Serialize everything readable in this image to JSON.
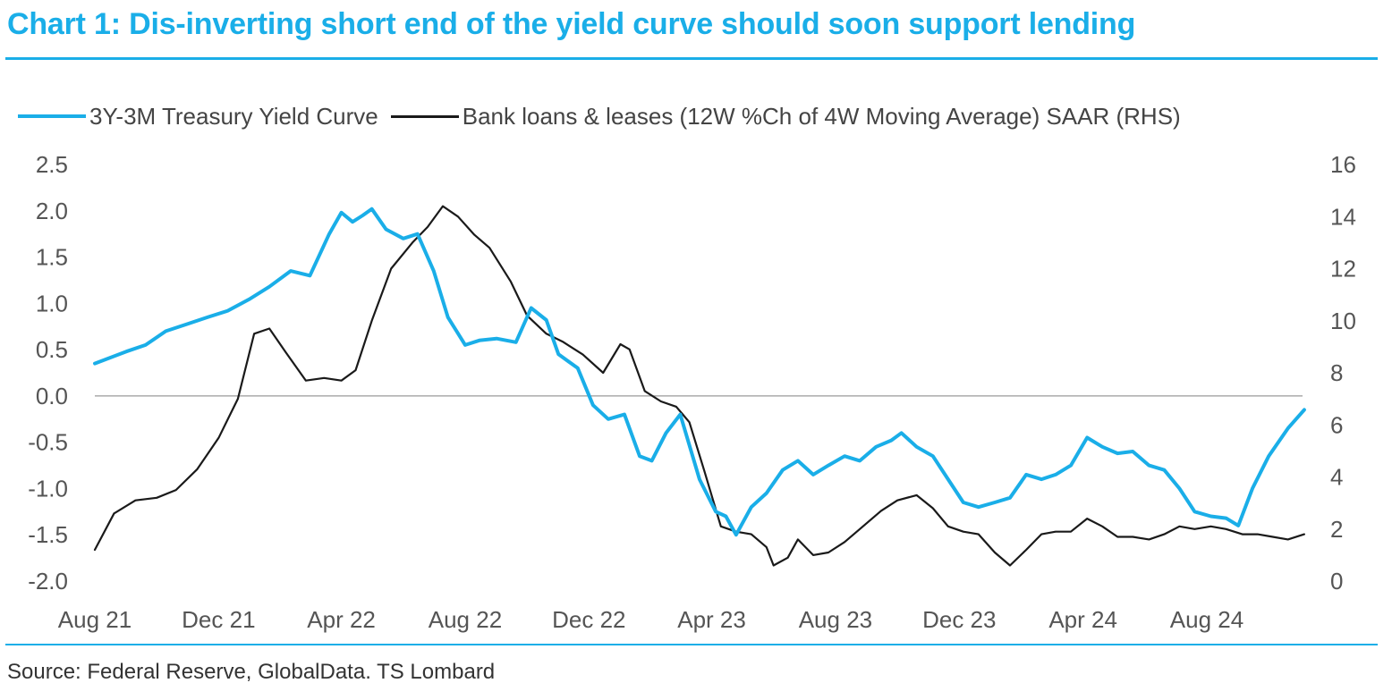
{
  "title": "Chart 1: Dis-inverting short end of the yield curve should soon support lending",
  "source": "Source: Federal Reserve, GlobalData. TS Lombard",
  "colors": {
    "accent": "#1aaee8",
    "series_yield": "#1aaee8",
    "series_loans": "#1a1a1a",
    "zero_line": "#9a9a9a"
  },
  "chart_data": {
    "type": "line",
    "title": "Chart 1: Dis-inverting short end of the yield curve should soon support lending",
    "legend_position": "top",
    "grid": false,
    "x_tick_labels": [
      "Aug 21",
      "Dec 21",
      "Apr 22",
      "Aug 22",
      "Dec 22",
      "Apr 23",
      "Aug 23",
      "Dec 23",
      "Apr 24",
      "Aug 24"
    ],
    "xlim": [
      "2021-08",
      "2024-12"
    ],
    "y_left": {
      "ylim": [
        -2.0,
        2.5
      ],
      "ticks": [
        "2.5",
        "2.0",
        "1.5",
        "1.0",
        "0.5",
        "0.0",
        "-0.5",
        "-1.0",
        "-1.5",
        "-2.0"
      ]
    },
    "y_right": {
      "ylim": [
        0,
        16
      ],
      "ticks": [
        "16",
        "14",
        "12",
        "10",
        "8",
        "6",
        "4",
        "2",
        "0"
      ]
    },
    "series": [
      {
        "name": "3Y-3M Treasury Yield Curve",
        "axis": "left",
        "points": [
          [
            "2021-08-01",
            0.35
          ],
          [
            "2021-09-01",
            0.48
          ],
          [
            "2021-09-20",
            0.55
          ],
          [
            "2021-10-10",
            0.7
          ],
          [
            "2021-11-01",
            0.78
          ],
          [
            "2021-11-20",
            0.85
          ],
          [
            "2021-12-10",
            0.92
          ],
          [
            "2022-01-01",
            1.05
          ],
          [
            "2022-01-20",
            1.18
          ],
          [
            "2022-02-10",
            1.35
          ],
          [
            "2022-03-01",
            1.3
          ],
          [
            "2022-03-20",
            1.75
          ],
          [
            "2022-04-01",
            1.98
          ],
          [
            "2022-04-12",
            1.88
          ],
          [
            "2022-04-22",
            1.95
          ],
          [
            "2022-05-01",
            2.02
          ],
          [
            "2022-05-15",
            1.8
          ],
          [
            "2022-06-01",
            1.7
          ],
          [
            "2022-06-15",
            1.75
          ],
          [
            "2022-07-01",
            1.35
          ],
          [
            "2022-07-15",
            0.85
          ],
          [
            "2022-08-01",
            0.55
          ],
          [
            "2022-08-15",
            0.6
          ],
          [
            "2022-09-01",
            0.62
          ],
          [
            "2022-09-20",
            0.58
          ],
          [
            "2022-10-05",
            0.95
          ],
          [
            "2022-10-20",
            0.82
          ],
          [
            "2022-11-01",
            0.45
          ],
          [
            "2022-11-20",
            0.3
          ],
          [
            "2022-12-05",
            -0.1
          ],
          [
            "2022-12-20",
            -0.25
          ],
          [
            "2023-01-05",
            -0.2
          ],
          [
            "2023-01-20",
            -0.65
          ],
          [
            "2023-02-01",
            -0.7
          ],
          [
            "2023-02-15",
            -0.4
          ],
          [
            "2023-03-01",
            -0.2
          ],
          [
            "2023-03-20",
            -0.9
          ],
          [
            "2023-04-05",
            -1.25
          ],
          [
            "2023-04-15",
            -1.3
          ],
          [
            "2023-04-25",
            -1.5
          ],
          [
            "2023-05-10",
            -1.2
          ],
          [
            "2023-05-25",
            -1.05
          ],
          [
            "2023-06-10",
            -0.8
          ],
          [
            "2023-06-25",
            -0.7
          ],
          [
            "2023-07-10",
            -0.85
          ],
          [
            "2023-07-25",
            -0.75
          ],
          [
            "2023-08-10",
            -0.65
          ],
          [
            "2023-08-25",
            -0.7
          ],
          [
            "2023-09-10",
            -0.55
          ],
          [
            "2023-09-25",
            -0.48
          ],
          [
            "2023-10-05",
            -0.4
          ],
          [
            "2023-10-20",
            -0.55
          ],
          [
            "2023-11-05",
            -0.65
          ],
          [
            "2023-11-20",
            -0.9
          ],
          [
            "2023-12-05",
            -1.15
          ],
          [
            "2023-12-20",
            -1.2
          ],
          [
            "2024-01-05",
            -1.15
          ],
          [
            "2024-01-20",
            -1.1
          ],
          [
            "2024-02-05",
            -0.85
          ],
          [
            "2024-02-20",
            -0.9
          ],
          [
            "2024-03-05",
            -0.85
          ],
          [
            "2024-03-20",
            -0.75
          ],
          [
            "2024-04-05",
            -0.45
          ],
          [
            "2024-04-20",
            -0.55
          ],
          [
            "2024-05-05",
            -0.62
          ],
          [
            "2024-05-20",
            -0.6
          ],
          [
            "2024-06-05",
            -0.75
          ],
          [
            "2024-06-20",
            -0.8
          ],
          [
            "2024-07-05",
            -1.0
          ],
          [
            "2024-07-20",
            -1.25
          ],
          [
            "2024-08-05",
            -1.3
          ],
          [
            "2024-08-20",
            -1.32
          ],
          [
            "2024-09-01",
            -1.4
          ],
          [
            "2024-09-15",
            -1.0
          ],
          [
            "2024-10-01",
            -0.65
          ],
          [
            "2024-10-20",
            -0.35
          ],
          [
            "2024-11-05",
            -0.15
          ]
        ]
      },
      {
        "name": "Bank loans & leases (12W %Ch of 4W Moving Average) SAAR (RHS)",
        "axis": "right",
        "points": [
          [
            "2021-08-01",
            1.2
          ],
          [
            "2021-08-20",
            2.6
          ],
          [
            "2021-09-10",
            3.1
          ],
          [
            "2021-10-01",
            3.2
          ],
          [
            "2021-10-20",
            3.5
          ],
          [
            "2021-11-10",
            4.3
          ],
          [
            "2021-12-01",
            5.5
          ],
          [
            "2021-12-20",
            7.0
          ],
          [
            "2022-01-05",
            9.5
          ],
          [
            "2022-01-20",
            9.7
          ],
          [
            "2022-02-05",
            8.8
          ],
          [
            "2022-02-25",
            7.7
          ],
          [
            "2022-03-15",
            7.8
          ],
          [
            "2022-04-01",
            7.7
          ],
          [
            "2022-04-15",
            8.1
          ],
          [
            "2022-05-01",
            10.0
          ],
          [
            "2022-05-20",
            12.0
          ],
          [
            "2022-06-10",
            13.0
          ],
          [
            "2022-06-25",
            13.6
          ],
          [
            "2022-07-10",
            14.4
          ],
          [
            "2022-07-25",
            14.0
          ],
          [
            "2022-08-10",
            13.3
          ],
          [
            "2022-08-25",
            12.8
          ],
          [
            "2022-09-15",
            11.5
          ],
          [
            "2022-10-01",
            10.2
          ],
          [
            "2022-10-20",
            9.5
          ],
          [
            "2022-11-05",
            9.2
          ],
          [
            "2022-11-25",
            8.7
          ],
          [
            "2022-12-15",
            8.0
          ],
          [
            "2023-01-01",
            9.1
          ],
          [
            "2023-01-10",
            8.9
          ],
          [
            "2023-01-25",
            7.3
          ],
          [
            "2023-02-10",
            6.9
          ],
          [
            "2023-02-25",
            6.7
          ],
          [
            "2023-03-10",
            6.1
          ],
          [
            "2023-03-25",
            4.2
          ],
          [
            "2023-04-10",
            2.1
          ],
          [
            "2023-04-25",
            1.9
          ],
          [
            "2023-05-10",
            1.8
          ],
          [
            "2023-05-25",
            1.3
          ],
          [
            "2023-06-01",
            0.6
          ],
          [
            "2023-06-15",
            0.9
          ],
          [
            "2023-06-25",
            1.6
          ],
          [
            "2023-07-10",
            1.0
          ],
          [
            "2023-07-25",
            1.1
          ],
          [
            "2023-08-10",
            1.5
          ],
          [
            "2023-08-25",
            2.0
          ],
          [
            "2023-09-15",
            2.7
          ],
          [
            "2023-10-01",
            3.1
          ],
          [
            "2023-10-20",
            3.3
          ],
          [
            "2023-11-05",
            2.8
          ],
          [
            "2023-11-20",
            2.1
          ],
          [
            "2023-12-05",
            1.9
          ],
          [
            "2023-12-20",
            1.8
          ],
          [
            "2024-01-05",
            1.1
          ],
          [
            "2024-01-20",
            0.6
          ],
          [
            "2024-02-05",
            1.2
          ],
          [
            "2024-02-20",
            1.8
          ],
          [
            "2024-03-05",
            1.9
          ],
          [
            "2024-03-20",
            1.9
          ],
          [
            "2024-04-05",
            2.4
          ],
          [
            "2024-04-20",
            2.1
          ],
          [
            "2024-05-05",
            1.7
          ],
          [
            "2024-05-20",
            1.7
          ],
          [
            "2024-06-05",
            1.6
          ],
          [
            "2024-06-20",
            1.8
          ],
          [
            "2024-07-05",
            2.1
          ],
          [
            "2024-07-20",
            2.0
          ],
          [
            "2024-08-05",
            2.1
          ],
          [
            "2024-08-20",
            2.0
          ],
          [
            "2024-09-05",
            1.8
          ],
          [
            "2024-09-20",
            1.8
          ],
          [
            "2024-10-05",
            1.7
          ],
          [
            "2024-10-20",
            1.6
          ],
          [
            "2024-11-05",
            1.8
          ]
        ]
      }
    ]
  }
}
